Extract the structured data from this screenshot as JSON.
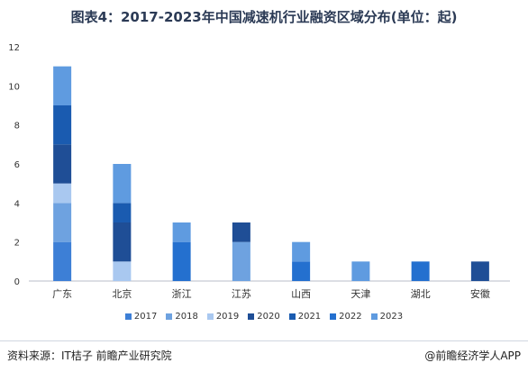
{
  "page": {
    "title": "图表4：2017-2023年中国减速机行业融资区域分布(单位：起)",
    "source": "资料来源：IT桔子 前瞻产业研究院",
    "brand": "@前瞻经济学人APP"
  },
  "chart_data": {
    "type": "bar",
    "stacked": true,
    "categories": [
      "广东",
      "北京",
      "浙江",
      "江苏",
      "山西",
      "天津",
      "湖北",
      "安徽"
    ],
    "ylim": [
      0,
      12
    ],
    "yticks": [
      0,
      2,
      4,
      6,
      8,
      10,
      12
    ],
    "grid": false,
    "legend_position": "bottom",
    "series": [
      {
        "name": "2017",
        "color": "#3d7fd6",
        "values": [
          2,
          0,
          0,
          0,
          0,
          0,
          0,
          0
        ]
      },
      {
        "name": "2018",
        "color": "#6ea2e0",
        "values": [
          2,
          0,
          0,
          2,
          0,
          0,
          0,
          0
        ]
      },
      {
        "name": "2019",
        "color": "#a9c8f0",
        "values": [
          1,
          1,
          0,
          0,
          0,
          0,
          0,
          0
        ]
      },
      {
        "name": "2020",
        "color": "#1f4e96",
        "values": [
          2,
          2,
          0,
          1,
          0,
          0,
          0,
          1
        ]
      },
      {
        "name": "2021",
        "color": "#1a5bb0",
        "values": [
          2,
          1,
          0,
          0,
          0,
          0,
          0,
          0
        ]
      },
      {
        "name": "2022",
        "color": "#2470cf",
        "values": [
          0,
          0,
          2,
          0,
          1,
          0,
          1,
          0
        ]
      },
      {
        "name": "2023",
        "color": "#5f9be0",
        "values": [
          2,
          2,
          1,
          0,
          1,
          1,
          0,
          0
        ]
      }
    ]
  }
}
